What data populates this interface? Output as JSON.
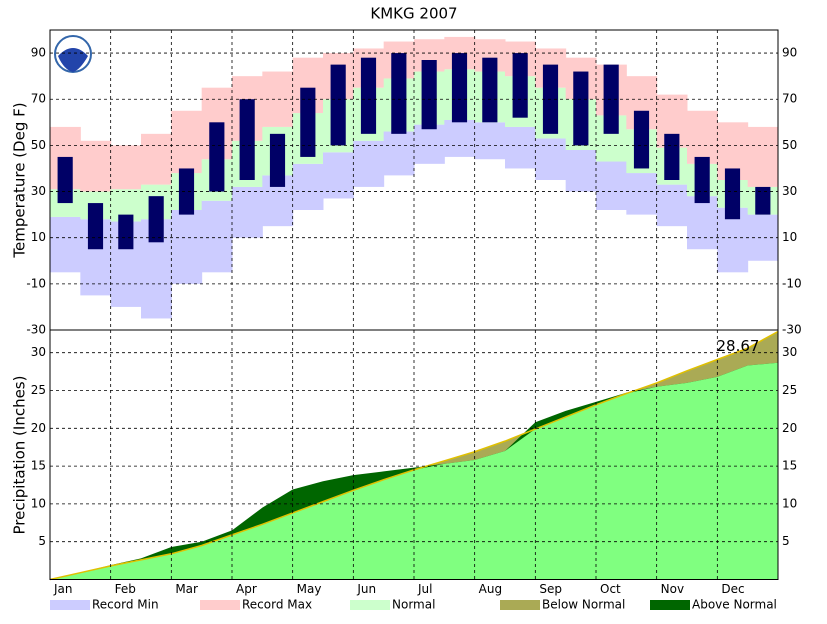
{
  "chart_data": [
    {
      "type": "band",
      "title": "KMKG 2007",
      "ylabel": "Temperature (Deg F)",
      "ylim": [
        -30,
        100
      ],
      "yticks": [
        -30,
        -10,
        10,
        30,
        50,
        70,
        90
      ],
      "grid": true,
      "series": [
        {
          "name": "Record Min",
          "color": "#ccccff",
          "values": [
            -5,
            -15,
            -20,
            -25,
            -10,
            -5,
            10,
            15,
            22,
            27,
            32,
            37,
            42,
            45,
            44,
            40,
            35,
            30,
            22,
            20,
            15,
            5,
            -5,
            0
          ]
        },
        {
          "name": "Record Max",
          "color": "#ffcccc",
          "values": [
            58,
            52,
            50,
            55,
            65,
            75,
            80,
            82,
            88,
            90,
            92,
            95,
            96,
            97,
            96,
            95,
            92,
            88,
            85,
            80,
            72,
            65,
            60,
            58
          ]
        },
        {
          "name": "Normal",
          "color": "#ccffcc",
          "values": [
            31,
            30,
            31,
            33,
            38,
            44,
            52,
            58,
            64,
            70,
            75,
            79,
            82,
            83,
            82,
            80,
            75,
            70,
            63,
            57,
            49,
            42,
            35,
            32
          ],
          "low": [
            19,
            18,
            17,
            18,
            22,
            26,
            32,
            37,
            42,
            47,
            52,
            56,
            59,
            61,
            60,
            58,
            53,
            48,
            43,
            38,
            33,
            28,
            23,
            20
          ]
        },
        {
          "color": "#000066",
          "values": [
            45,
            25,
            20,
            28,
            40,
            60,
            70,
            55,
            75,
            85,
            88,
            90,
            87,
            90,
            88,
            90,
            85,
            82,
            85,
            65,
            55,
            45,
            40,
            32
          ],
          "low": [
            25,
            5,
            5,
            8,
            20,
            30,
            35,
            32,
            45,
            50,
            55,
            55,
            57,
            60,
            60,
            62,
            55,
            50,
            55,
            40,
            35,
            25,
            18,
            20
          ]
        }
      ]
    },
    {
      "type": "cumulative",
      "ylabel": "Precipitation (Inches)",
      "categories": [
        "Jan",
        null,
        "Feb",
        null,
        "Mar",
        null,
        "Apr",
        null,
        "May",
        null,
        "Jun",
        null,
        "Jul",
        null,
        "Aug",
        null,
        "Sep",
        null,
        "Oct",
        null,
        "Nov",
        null,
        "Dec",
        null
      ],
      "ylim": [
        0,
        33
      ],
      "yticks": [
        5,
        10,
        15,
        20,
        25,
        30
      ],
      "grid": true,
      "series": [
        {
          "color": "#80ff80",
          "values": [
            0.9,
            1.9,
            2.8,
            4.3,
            5.0,
            6.5,
            9.5,
            11.9,
            13.0,
            13.8,
            14.3,
            14.8,
            15.3,
            15.8,
            17.0,
            20.8,
            22.3,
            23.5,
            24.7,
            25.5,
            26.0,
            26.8,
            28.3,
            28.67
          ]
        },
        {
          "color": "#e0c000",
          "values": [
            0.9,
            1.8,
            2.6,
            3.4,
            4.5,
            5.9,
            7.3,
            8.8,
            10.3,
            11.8,
            13.2,
            14.5,
            15.7,
            16.9,
            18.3,
            19.9,
            21.5,
            23.1,
            24.6,
            26.0,
            27.6,
            29.1,
            30.6,
            32.8
          ]
        }
      ],
      "fills": [
        {
          "name": "Below Normal",
          "color": "#aaaa55"
        },
        {
          "name": "Above Normal",
          "color": "#006600"
        }
      ]
    }
  ]
}
